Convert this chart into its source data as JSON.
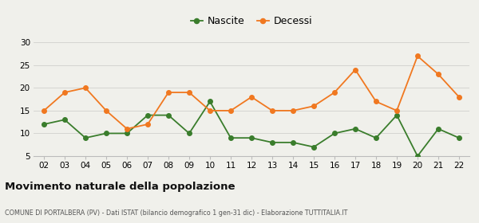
{
  "years": [
    "02",
    "03",
    "04",
    "05",
    "06",
    "07",
    "08",
    "09",
    "10",
    "11",
    "12",
    "13",
    "14",
    "15",
    "16",
    "17",
    "18",
    "19",
    "20",
    "21",
    "22"
  ],
  "nascite": [
    12,
    13,
    9,
    10,
    10,
    14,
    14,
    10,
    17,
    9,
    9,
    8,
    8,
    7,
    10,
    11,
    9,
    14,
    5,
    11,
    9
  ],
  "decessi": [
    15,
    19,
    20,
    15,
    11,
    12,
    19,
    19,
    15,
    15,
    18,
    15,
    15,
    16,
    19,
    24,
    17,
    15,
    27,
    23,
    18
  ],
  "nascite_color": "#3a7d2c",
  "decessi_color": "#f07820",
  "bg_color": "#f0f0eb",
  "title": "Movimento naturale della popolazione",
  "subtitle": "COMUNE DI PORTALBERA (PV) - Dati ISTAT (bilancio demografico 1 gen-31 dic) - Elaborazione TUTTITALIA.IT",
  "legend_nascite": "Nascite",
  "legend_decessi": "Decessi",
  "ylim_min": 5,
  "ylim_max": 30,
  "yticks": [
    5,
    10,
    15,
    20,
    25,
    30
  ]
}
